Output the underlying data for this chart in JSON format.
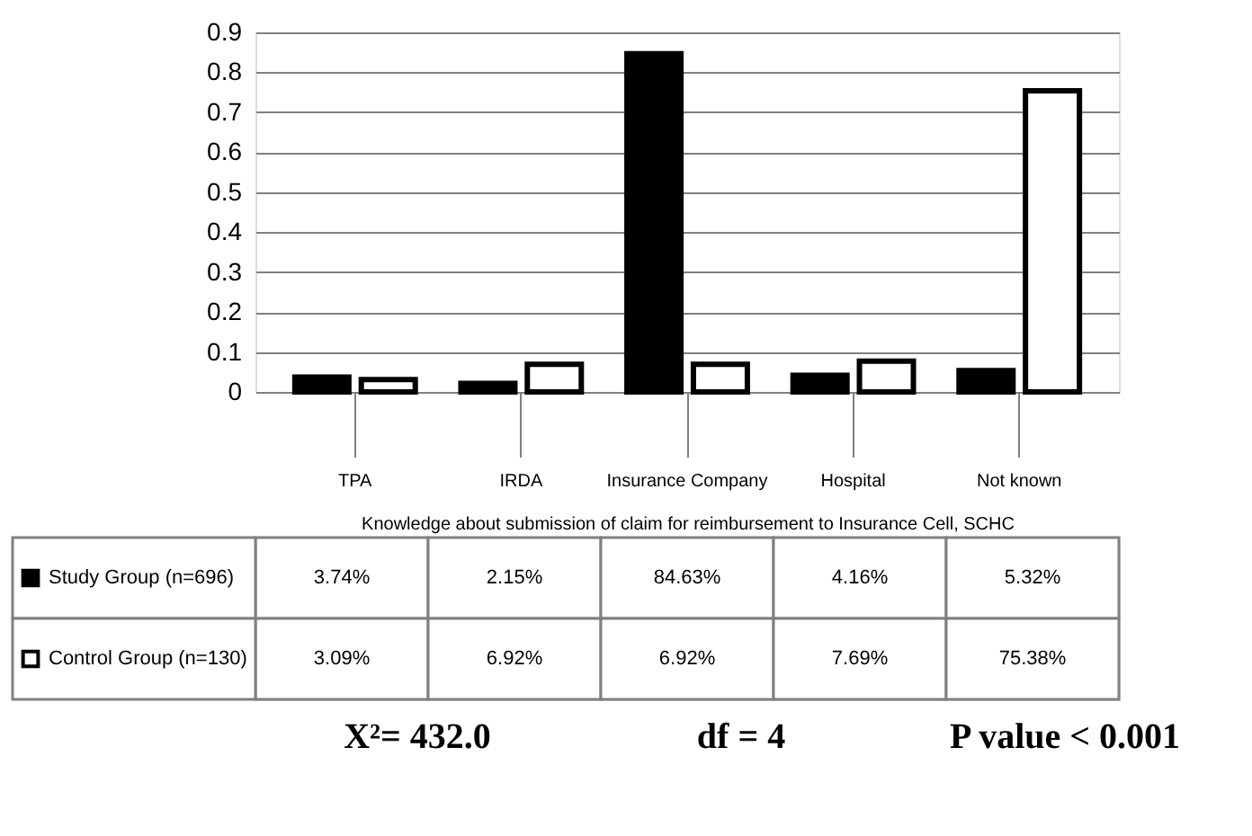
{
  "chart_data": {
    "type": "bar",
    "xlabel": "Knowledge about submission of claim for reimbursement to Insurance Cell, SCHC",
    "categories": [
      "TPA",
      "IRDA",
      "Insurance Company",
      "Hospital",
      "Not known"
    ],
    "series": [
      {
        "name": "Study Group (n=696)",
        "color": "#000000",
        "values": [
          0.0374,
          0.0215,
          0.8463,
          0.0416,
          0.0532
        ],
        "value_labels": [
          "3.74%",
          "2.15%",
          "84.63%",
          "4.16%",
          "5.32%"
        ]
      },
      {
        "name": "Control Group (n=130)",
        "color": "#ffffff",
        "values": [
          0.0309,
          0.0692,
          0.0692,
          0.0769,
          0.7538
        ],
        "value_labels": [
          "3.09%",
          "6.92%",
          "6.92%",
          "7.69%",
          "75.38%"
        ]
      }
    ],
    "ylim": [
      0,
      0.9
    ],
    "yticks": [
      0,
      0.1,
      0.2,
      0.3,
      0.4,
      0.5,
      0.6,
      0.7,
      0.8,
      0.9
    ],
    "grid": "y",
    "legend": "bottom",
    "annotations": [
      "X²= 432.0",
      "df = 4",
      "P value < 0.001"
    ]
  }
}
